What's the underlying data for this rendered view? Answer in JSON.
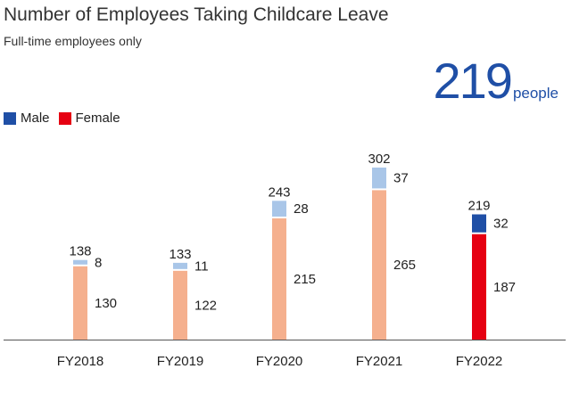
{
  "header": {
    "title": "Number of Employees Taking Childcare Leave",
    "subtitle": "Full-time employees only",
    "total_value": "219",
    "total_unit": "people"
  },
  "legend": {
    "items": [
      {
        "label": "Male",
        "color": "#1f4fa6"
      },
      {
        "label": "Female",
        "color": "#e60012"
      }
    ]
  },
  "chart_data": {
    "type": "bar",
    "stacked": true,
    "categories": [
      "FY2018",
      "FY2019",
      "FY2020",
      "FY2021",
      "FY2022"
    ],
    "series": [
      {
        "name": "Female",
        "values": [
          130,
          122,
          215,
          265,
          187
        ]
      },
      {
        "name": "Male",
        "values": [
          8,
          11,
          28,
          37,
          32
        ]
      }
    ],
    "totals": [
      138,
      133,
      243,
      302,
      219
    ],
    "highlight_index": 4,
    "colors": {
      "female_past": "#f5b08e",
      "male_past": "#a9c6e8",
      "female_highlight": "#e60012",
      "male_highlight": "#1f4fa6"
    },
    "ylim": [
      0,
      302
    ],
    "grid": false,
    "legend_position": "top-left"
  }
}
